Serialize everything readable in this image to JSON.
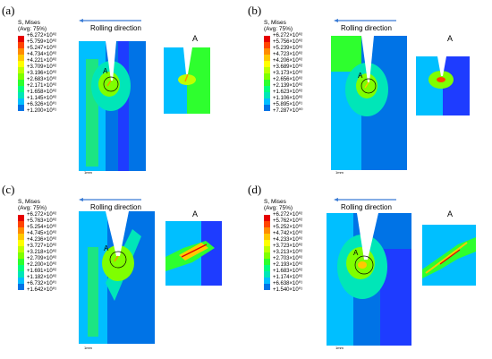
{
  "title_line1": "S, Mises",
  "title_line2": "(Avg: 75%)",
  "rolling_direction": "Rolling direction",
  "detail_label": "A",
  "circle_label": "A",
  "scale_label": "1mm",
  "legend_colors": [
    "#e60000",
    "#ff4500",
    "#ff8c00",
    "#ffc800",
    "#ffff00",
    "#bfff00",
    "#7fff00",
    "#2eff2e",
    "#00ff7f",
    "#00e6b8",
    "#00bfff",
    "#0073e6",
    "#1e3cff",
    "#0000c8"
  ],
  "panels": [
    {
      "label": "(a)",
      "values": [
        "+6.272×10⁰²",
        "+5.759×10⁰²",
        "+5.247×10⁰²",
        "+4.734×10⁰²",
        "+4.221×10⁰²",
        "+3.709×10⁰²",
        "+3.196×10⁰²",
        "+2.683×10⁰²",
        "+2.171×10⁰²",
        "+1.658×10⁰²",
        "+1.145×10⁰²",
        "+6.326×10⁰¹",
        "+1.200×10⁰¹"
      ]
    },
    {
      "label": "(b)",
      "values": [
        "+6.272×10⁰²",
        "+5.756×10⁰²",
        "+5.239×10⁰²",
        "+4.723×10⁰²",
        "+4.206×10⁰²",
        "+3.689×10⁰²",
        "+3.173×10⁰²",
        "+2.656×10⁰²",
        "+2.139×10⁰²",
        "+1.623×10⁰²",
        "+1.106×10⁰²",
        "+5.895×10⁰¹",
        "+7.287×10⁰⁰"
      ]
    },
    {
      "label": "(c)",
      "values": [
        "+6.272×10⁰²",
        "+5.763×10⁰²",
        "+5.254×10⁰²",
        "+4.745×10⁰²",
        "+4.236×10⁰²",
        "+3.727×10⁰²",
        "+3.218×10⁰²",
        "+2.709×10⁰²",
        "+2.200×10⁰²",
        "+1.691×10⁰²",
        "+1.182×10⁰²",
        "+6.732×10⁰¹",
        "+1.642×10⁰¹"
      ]
    },
    {
      "label": "(d)",
      "values": [
        "+6.272×10⁰²",
        "+5.762×10⁰²",
        "+5.252×10⁰²",
        "+4.742×10⁰²",
        "+4.233×10⁰²",
        "+3.723×10⁰²",
        "+3.213×10⁰²",
        "+2.703×10⁰²",
        "+2.193×10⁰²",
        "+1.683×10⁰²",
        "+1.174×10⁰²",
        "+6.638×10⁰¹",
        "+1.540×10⁰¹"
      ]
    }
  ]
}
